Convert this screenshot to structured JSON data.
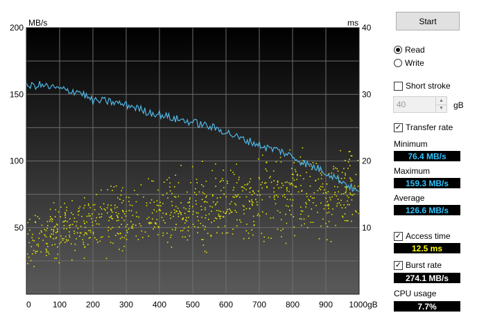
{
  "chart_data": {
    "type": "line",
    "title": "",
    "xlabel": "",
    "ylabel_left": "MB/s",
    "ylabel_right": "ms",
    "x_unit": "gB",
    "xlim": [
      0,
      1000
    ],
    "ylim_left": [
      0,
      200
    ],
    "ylim_right": [
      0,
      40
    ],
    "x_ticks": [
      "0",
      "100",
      "200",
      "300",
      "400",
      "500",
      "600",
      "700",
      "800",
      "900",
      "1000gB"
    ],
    "y_ticks_left": [
      "200",
      "150",
      "100",
      "50"
    ],
    "y_ticks_right": [
      "40",
      "30",
      "20",
      "10"
    ],
    "grid": true,
    "series": [
      {
        "name": "Transfer rate",
        "axis": "left",
        "color": "#4fb8e8",
        "x": [
          0,
          40,
          80,
          120,
          160,
          200,
          240,
          280,
          320,
          360,
          400,
          440,
          480,
          520,
          560,
          600,
          640,
          680,
          720,
          760,
          800,
          840,
          880,
          920,
          960,
          1000
        ],
        "values": [
          156,
          157,
          155,
          153,
          152,
          145,
          145,
          143,
          141,
          137,
          135,
          132,
          130,
          128,
          125,
          122,
          117,
          114,
          110,
          108,
          103,
          98,
          94,
          89,
          83,
          76
        ]
      },
      {
        "name": "Access time",
        "axis": "right",
        "type": "scatter",
        "color": "#e8e800",
        "trend_x": [
          0,
          100,
          200,
          300,
          400,
          500,
          600,
          700,
          800,
          900,
          1000
        ],
        "trend_values": [
          8,
          9.5,
          10.5,
          11.5,
          12.5,
          13,
          13.5,
          14.5,
          15,
          15,
          15.5
        ]
      }
    ]
  },
  "panel": {
    "start_label": "Start",
    "read_label": "Read",
    "write_label": "Write",
    "mode_selected": "Read",
    "short_stroke_label": "Short stroke",
    "short_stroke_checked": false,
    "short_stroke_value": "40",
    "short_stroke_unit": "gB",
    "transfer_rate_label": "Transfer rate",
    "transfer_rate_checked": true,
    "minimum_label": "Minimum",
    "minimum_value": "76.4 MB/s",
    "maximum_label": "Maximum",
    "maximum_value": "159.3 MB/s",
    "average_label": "Average",
    "average_value": "126.6 MB/s",
    "access_time_label": "Access time",
    "access_time_checked": true,
    "access_time_value": "12.5 ms",
    "burst_rate_label": "Burst rate",
    "burst_rate_checked": true,
    "burst_rate_value": "274.1 MB/s",
    "cpu_usage_label": "CPU usage",
    "cpu_usage_value": "7.7%"
  },
  "check_glyph": "✓",
  "colors": {
    "plot_top": "#000000",
    "plot_bottom": "#5a5a5a",
    "grid": "#6e6e6e",
    "transfer_line": "#4fb8e8",
    "access_points": "#e8e800",
    "readout_cyan": "#2ec5ff",
    "readout_yellow": "#ffff00"
  }
}
